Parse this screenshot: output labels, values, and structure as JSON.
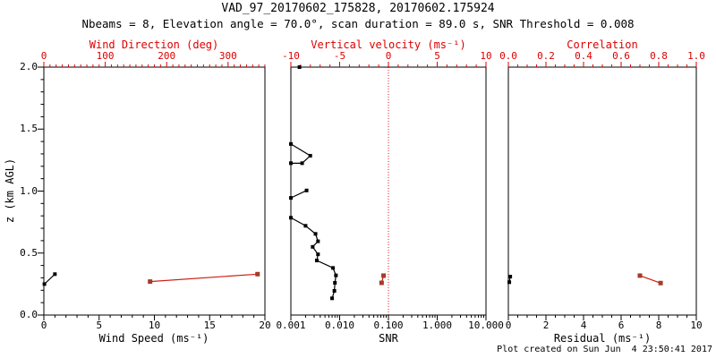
{
  "page": {
    "title": "VAD_97_20170602_175828, 20170602.175924",
    "subtitle": "Nbeams = 8, Elevation angle = 70.0°, scan duration = 89.0 s, SNR Threshold = 0.008",
    "footer": "Plot created on Sun Jun  4 23:50:41 2017",
    "colors": {
      "background": "#ffffff",
      "frame": "#000000",
      "axis_red": "#dd0000",
      "data_red_line": "#cc1f14",
      "data_red_marker": "#a63b28",
      "data_black": "#000000"
    }
  },
  "chart_data": [
    {
      "type": "line",
      "panel": "wind",
      "y": {
        "label": "z (km AGL)",
        "min": 0,
        "max": 2,
        "major": [
          0,
          0.5,
          1,
          1.5,
          2
        ],
        "labels": [
          "0.0",
          "0.5",
          "1.0",
          "1.5",
          "2.0"
        ],
        "minor_step": 0.1
      },
      "x_bottom": {
        "label": "Wind Speed (ms⁻¹)",
        "min": 0,
        "max": 20,
        "major": [
          0,
          5,
          10,
          15,
          20
        ],
        "labels": [
          "0",
          "5",
          "10",
          "15",
          "20"
        ],
        "minor_step": 1,
        "color": "#000000"
      },
      "x_top": {
        "label": "Wind Direction (deg)",
        "min": 0,
        "max": 360,
        "major": [
          0,
          100,
          200,
          300
        ],
        "labels": [
          "0",
          "100",
          "200",
          "300"
        ],
        "minor_step": 10,
        "color": "#dd0000"
      },
      "series": [
        {
          "name": "wind_speed",
          "axis": "bottom",
          "color": "#000000",
          "marker": 4,
          "segments": [
            [
              [
                0.05,
                0.25
              ],
              [
                1.0,
                0.33
              ]
            ]
          ]
        },
        {
          "name": "wind_direction",
          "axis": "top",
          "color": "#cc1f14",
          "marker": 5,
          "segments": [
            [
              [
                173,
                0.27
              ],
              [
                348,
                0.33
              ]
            ]
          ]
        }
      ]
    },
    {
      "type": "line",
      "panel": "snr",
      "y": {
        "min": 0,
        "max": 2,
        "minor_step": 0
      },
      "x_bottom": {
        "label": "SNR",
        "scale": "log",
        "min": 0.001,
        "max": 10,
        "major": [
          0.001,
          0.01,
          0.1,
          1,
          10
        ],
        "labels": [
          "0.001",
          "0.010",
          "0.100",
          "1.000",
          "10.000"
        ],
        "color": "#000000"
      },
      "x_top": {
        "label": "Vertical velocity (ms⁻¹)",
        "min": -10,
        "max": 10,
        "major": [
          -10,
          -5,
          0,
          5,
          10
        ],
        "labels": [
          "-10",
          "-5",
          "0",
          "5",
          "10"
        ],
        "minor_step": 1,
        "color": "#dd0000"
      },
      "refline": {
        "axis": "top",
        "value": 0,
        "color": "#dd2222",
        "style": "dotted"
      },
      "series": [
        {
          "name": "snr_profile",
          "axis": "bottom",
          "color": "#000000",
          "marker": 4,
          "segments": [
            [
              [
                0.0015,
                2.0
              ]
            ],
            [
              [
                0.001,
                1.38
              ],
              [
                0.0025,
                1.285
              ],
              [
                0.0017,
                1.225
              ],
              [
                0.001,
                1.225
              ]
            ],
            [
              [
                0.0021,
                1.005
              ],
              [
                0.001,
                0.945
              ]
            ],
            [
              [
                0.001,
                0.785
              ],
              [
                0.002,
                0.72
              ],
              [
                0.0032,
                0.655
              ],
              [
                0.0036,
                0.595
              ],
              [
                0.0028,
                0.55
              ],
              [
                0.0036,
                0.49
              ],
              [
                0.0034,
                0.44
              ],
              [
                0.0073,
                0.38
              ],
              [
                0.0084,
                0.32
              ],
              [
                0.008,
                0.26
              ],
              [
                0.0078,
                0.195
              ],
              [
                0.007,
                0.135
              ]
            ]
          ]
        },
        {
          "name": "vertical_velocity",
          "axis": "top",
          "color": "#cc1f14",
          "marker": 5,
          "segments": [
            [
              [
                -0.5,
                0.318
              ],
              [
                -0.7,
                0.26
              ]
            ]
          ]
        }
      ]
    },
    {
      "type": "line",
      "panel": "residual",
      "y": {
        "min": 0,
        "max": 2,
        "minor_step": 0
      },
      "x_bottom": {
        "label": "Residual (ms⁻¹)",
        "min": 0,
        "max": 10,
        "major": [
          0,
          2,
          4,
          6,
          8,
          10
        ],
        "labels": [
          "0",
          "2",
          "4",
          "6",
          "8",
          "10"
        ],
        "minor_step": 0.5,
        "color": "#000000"
      },
      "x_top": {
        "label": "Correlation",
        "min": 0,
        "max": 1,
        "major": [
          0,
          0.2,
          0.4,
          0.6,
          0.8,
          1.0
        ],
        "labels": [
          "0.0",
          "0.2",
          "0.4",
          "0.6",
          "0.8",
          "1.0"
        ],
        "minor_step": 0.05,
        "color": "#dd0000"
      },
      "series": [
        {
          "name": "residual",
          "axis": "bottom",
          "color": "#000000",
          "marker": 4,
          "segments": [
            [
              [
                0.1,
                0.31
              ],
              [
                0.05,
                0.265
              ]
            ]
          ]
        },
        {
          "name": "correlation",
          "axis": "top",
          "color": "#cc1f14",
          "marker": 5,
          "segments": [
            [
              [
                0.7,
                0.318
              ],
              [
                0.81,
                0.258
              ]
            ]
          ]
        }
      ]
    }
  ]
}
